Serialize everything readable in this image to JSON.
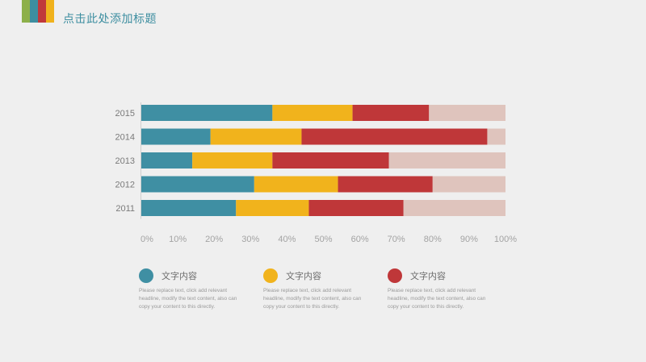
{
  "page": {
    "title": "点击此处添加标题"
  },
  "logo_colors": [
    "#8db04a",
    "#3d8ea0",
    "#c0393b",
    "#f0b21c"
  ],
  "colors": {
    "s1": "#3f8fa3",
    "s2": "#f1b31c",
    "s3": "#bf3739",
    "s4": "#dfc4bd"
  },
  "legend": [
    {
      "label": "文字内容",
      "color": "#3f8fa3",
      "desc": "Please replace text, click add relevant headline, modify the text content, also can copy your content to this directly."
    },
    {
      "label": "文字内容",
      "color": "#f1b31c",
      "desc": "Please replace text, click add relevant headline, modify the text content, also can copy your content to this directly."
    },
    {
      "label": "文字内容",
      "color": "#bf3739",
      "desc": "Please replace text, click add relevant headline, modify the text content, also can copy your content to this directly."
    }
  ],
  "chart_data": {
    "type": "bar",
    "orientation": "horizontal",
    "stacked": true,
    "categories": [
      "2015",
      "2014",
      "2013",
      "2012",
      "2011"
    ],
    "series": [
      {
        "color": "#3f8fa3",
        "values": [
          36,
          19,
          14,
          31,
          26
        ]
      },
      {
        "color": "#f1b31c",
        "values": [
          22,
          25,
          22,
          23,
          20
        ]
      },
      {
        "color": "#bf3739",
        "values": [
          21,
          51,
          32,
          26,
          26
        ]
      },
      {
        "color": "#dfc4bd",
        "values": [
          21,
          5,
          32,
          20,
          28
        ]
      }
    ],
    "x_ticks": [
      "0%",
      "10%",
      "20%",
      "30%",
      "40%",
      "50%",
      "60%",
      "70%",
      "80%",
      "90%",
      "100%"
    ],
    "xlim": [
      0,
      100
    ],
    "grid": false,
    "legend_position": "bottom"
  }
}
